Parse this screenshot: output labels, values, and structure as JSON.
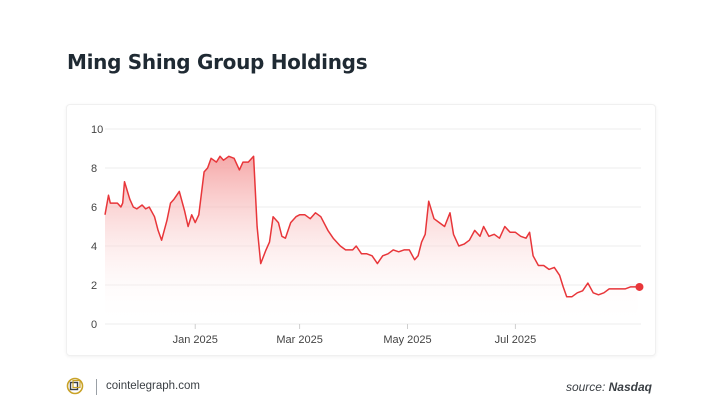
{
  "title": "Ming Shing Group Holdings",
  "footer": {
    "brand": "cointelegraph.com",
    "source_prefix": "source:",
    "source_name": "Nasdaq",
    "logo_icon": "cointelegraph-logo-icon"
  },
  "colors": {
    "line": "#e8363a",
    "fill_top": "#f49a9a",
    "grid": "#eeeeee",
    "text": "#1f2a33"
  },
  "chart_data": {
    "type": "area",
    "title": "Ming Shing Group Holdings",
    "xlabel": "",
    "ylabel": "",
    "ylim": [
      0,
      10
    ],
    "y_ticks": [
      0,
      2,
      4,
      6,
      8,
      10
    ],
    "x_ticks": [
      {
        "label": "Jan 2025",
        "date": "2025-01-01"
      },
      {
        "label": "Mar 2025",
        "date": "2025-03-01"
      },
      {
        "label": "May 2025",
        "date": "2025-05-01"
      },
      {
        "label": "Jul 2025",
        "date": "2025-07-01"
      }
    ],
    "xlim": [
      "2024-11-11",
      "2025-09-10"
    ],
    "grid": true,
    "legend": "none",
    "series": [
      {
        "points": [
          [
            "2024-11-11",
            5.6
          ],
          [
            "2024-11-13",
            6.6
          ],
          [
            "2024-11-14",
            6.2
          ],
          [
            "2024-11-18",
            6.2
          ],
          [
            "2024-11-20",
            6.0
          ],
          [
            "2024-11-21",
            6.2
          ],
          [
            "2024-11-22",
            7.3
          ],
          [
            "2024-11-25",
            6.4
          ],
          [
            "2024-11-27",
            6.0
          ],
          [
            "2024-11-29",
            5.9
          ],
          [
            "2024-12-02",
            6.1
          ],
          [
            "2024-12-04",
            5.9
          ],
          [
            "2024-12-06",
            6.0
          ],
          [
            "2024-12-09",
            5.5
          ],
          [
            "2024-12-11",
            4.8
          ],
          [
            "2024-12-13",
            4.3
          ],
          [
            "2024-12-16",
            5.3
          ],
          [
            "2024-12-18",
            6.2
          ],
          [
            "2024-12-20",
            6.4
          ],
          [
            "2024-12-23",
            6.8
          ],
          [
            "2024-12-26",
            5.8
          ],
          [
            "2024-12-28",
            5.0
          ],
          [
            "2024-12-30",
            5.6
          ],
          [
            "2025-01-01",
            5.2
          ],
          [
            "2025-01-03",
            5.6
          ],
          [
            "2025-01-06",
            7.8
          ],
          [
            "2025-01-08",
            8.0
          ],
          [
            "2025-01-10",
            8.5
          ],
          [
            "2025-01-13",
            8.3
          ],
          [
            "2025-01-15",
            8.6
          ],
          [
            "2025-01-17",
            8.4
          ],
          [
            "2025-01-20",
            8.6
          ],
          [
            "2025-01-23",
            8.5
          ],
          [
            "2025-01-26",
            7.9
          ],
          [
            "2025-01-28",
            8.3
          ],
          [
            "2025-01-31",
            8.3
          ],
          [
            "2025-02-03",
            8.6
          ],
          [
            "2025-02-05",
            5.0
          ],
          [
            "2025-02-07",
            3.1
          ],
          [
            "2025-02-10",
            3.8
          ],
          [
            "2025-02-12",
            4.2
          ],
          [
            "2025-02-14",
            5.5
          ],
          [
            "2025-02-17",
            5.2
          ],
          [
            "2025-02-19",
            4.5
          ],
          [
            "2025-02-21",
            4.4
          ],
          [
            "2025-02-24",
            5.2
          ],
          [
            "2025-02-27",
            5.5
          ],
          [
            "2025-03-01",
            5.6
          ],
          [
            "2025-03-04",
            5.6
          ],
          [
            "2025-03-07",
            5.4
          ],
          [
            "2025-03-10",
            5.7
          ],
          [
            "2025-03-13",
            5.5
          ],
          [
            "2025-03-17",
            4.8
          ],
          [
            "2025-03-20",
            4.4
          ],
          [
            "2025-03-24",
            4.0
          ],
          [
            "2025-03-27",
            3.8
          ],
          [
            "2025-03-31",
            3.8
          ],
          [
            "2025-04-02",
            4.0
          ],
          [
            "2025-04-05",
            3.6
          ],
          [
            "2025-04-08",
            3.6
          ],
          [
            "2025-04-11",
            3.5
          ],
          [
            "2025-04-14",
            3.1
          ],
          [
            "2025-04-17",
            3.5
          ],
          [
            "2025-04-20",
            3.6
          ],
          [
            "2025-04-23",
            3.8
          ],
          [
            "2025-04-26",
            3.7
          ],
          [
            "2025-04-29",
            3.8
          ],
          [
            "2025-05-02",
            3.8
          ],
          [
            "2025-05-05",
            3.3
          ],
          [
            "2025-05-07",
            3.5
          ],
          [
            "2025-05-09",
            4.2
          ],
          [
            "2025-05-11",
            4.6
          ],
          [
            "2025-05-13",
            6.3
          ],
          [
            "2025-05-16",
            5.4
          ],
          [
            "2025-05-19",
            5.2
          ],
          [
            "2025-05-22",
            5.0
          ],
          [
            "2025-05-25",
            5.7
          ],
          [
            "2025-05-27",
            4.6
          ],
          [
            "2025-05-30",
            4.0
          ],
          [
            "2025-06-02",
            4.1
          ],
          [
            "2025-06-05",
            4.3
          ],
          [
            "2025-06-08",
            4.8
          ],
          [
            "2025-06-11",
            4.5
          ],
          [
            "2025-06-13",
            5.0
          ],
          [
            "2025-06-16",
            4.5
          ],
          [
            "2025-06-19",
            4.6
          ],
          [
            "2025-06-22",
            4.4
          ],
          [
            "2025-06-25",
            5.0
          ],
          [
            "2025-06-28",
            4.7
          ],
          [
            "2025-07-01",
            4.7
          ],
          [
            "2025-07-04",
            4.5
          ],
          [
            "2025-07-07",
            4.4
          ],
          [
            "2025-07-09",
            4.7
          ],
          [
            "2025-07-11",
            3.5
          ],
          [
            "2025-07-14",
            3.0
          ],
          [
            "2025-07-17",
            3.0
          ],
          [
            "2025-07-20",
            2.8
          ],
          [
            "2025-07-23",
            2.9
          ],
          [
            "2025-07-26",
            2.5
          ],
          [
            "2025-07-28",
            1.9
          ],
          [
            "2025-07-30",
            1.4
          ],
          [
            "2025-08-02",
            1.4
          ],
          [
            "2025-08-05",
            1.6
          ],
          [
            "2025-08-08",
            1.7
          ],
          [
            "2025-08-11",
            2.1
          ],
          [
            "2025-08-14",
            1.6
          ],
          [
            "2025-08-17",
            1.5
          ],
          [
            "2025-08-20",
            1.6
          ],
          [
            "2025-08-23",
            1.8
          ],
          [
            "2025-08-26",
            1.8
          ],
          [
            "2025-08-29",
            1.8
          ],
          [
            "2025-09-01",
            1.8
          ],
          [
            "2025-09-04",
            1.9
          ],
          [
            "2025-09-08",
            1.9
          ]
        ]
      }
    ],
    "end_marker": true
  }
}
